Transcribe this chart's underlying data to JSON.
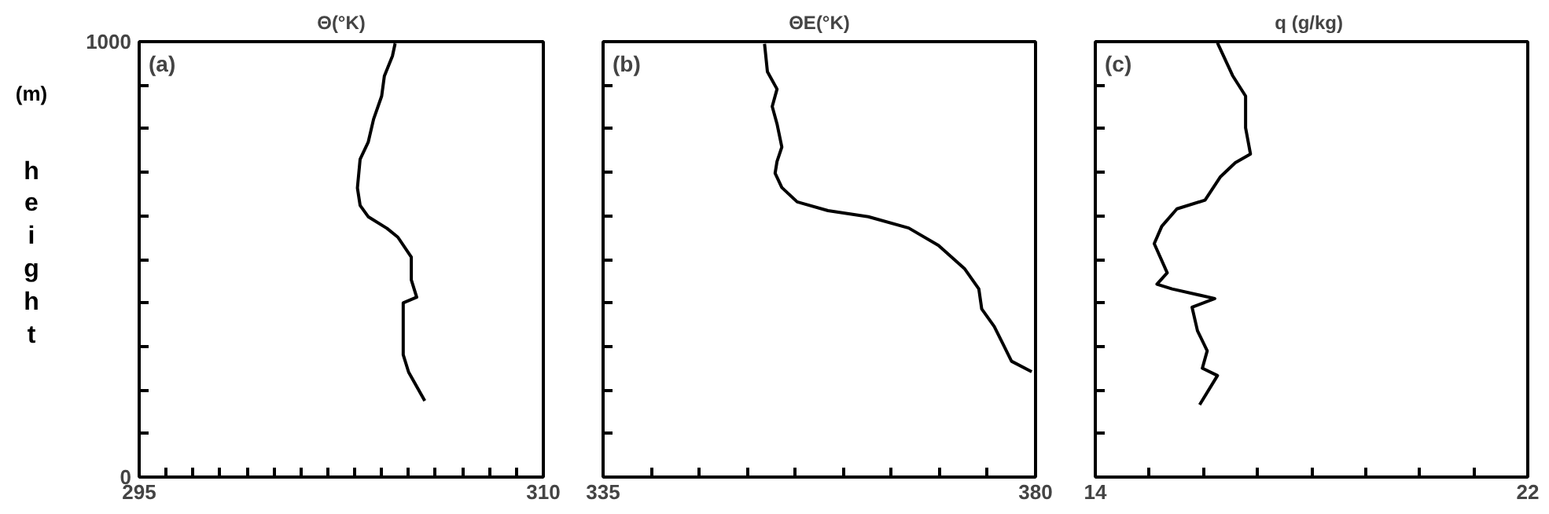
{
  "chart_data": [
    {
      "type": "line",
      "title": "Θ(°K)",
      "ylabel": "height",
      "annotations": [
        "(a)",
        "(m)"
      ],
      "xlim": [
        295,
        310
      ],
      "ylim": [
        0,
        1000
      ],
      "xticks": [
        295,
        {
          "value": 296,
          "label": null
        },
        {
          "value": 297,
          "label": null
        },
        {
          "value": 298,
          "label": null
        },
        {
          "value": 299,
          "label": null
        },
        {
          "value": 300,
          "label": null
        },
        {
          "value": 301,
          "label": null
        },
        {
          "value": 302,
          "label": null
        },
        {
          "value": 303,
          "label": null
        },
        {
          "value": 304,
          "label": null
        },
        {
          "value": 305,
          "label": null
        },
        {
          "value": 306,
          "label": null
        },
        {
          "value": 307,
          "label": null
        },
        {
          "value": 308,
          "label": null
        },
        {
          "value": 309,
          "label": null
        },
        310
      ],
      "yticks": [
        0,
        {
          "value": 100,
          "label": null
        },
        {
          "value": 200,
          "label": null
        },
        {
          "value": 300,
          "label": null
        },
        {
          "value": 400,
          "label": null
        },
        {
          "value": 500,
          "label": null
        },
        {
          "value": 600,
          "label": null
        },
        {
          "value": 700,
          "label": null
        },
        {
          "value": 800,
          "label": null
        },
        {
          "value": 900,
          "label": null
        },
        1000
      ],
      "series": [
        {
          "color": "#000000",
          "x": [
            305.6,
            305.0,
            304.8,
            304.8,
            304.8,
            305.3,
            305.1,
            305.1,
            304.6,
            304.2,
            303.5,
            303.2,
            303.1,
            303.2,
            303.5,
            303.7,
            304.0,
            304.1,
            304.4,
            304.5
          ],
          "values": [
            175,
            241,
            281,
            334,
            400,
            413,
            453,
            505,
            551,
            571,
            598,
            624,
            664,
            730,
            769,
            822,
            875,
            921,
            967,
            996
          ]
        }
      ]
    },
    {
      "type": "line",
      "title": "ΘE(°K)",
      "annotations": [
        "(b)"
      ],
      "xlim": [
        335,
        380
      ],
      "ylim": [
        0,
        1000
      ],
      "tick_labels": "x",
      "xticks": [
        335,
        {
          "value": 340,
          "label": null
        },
        {
          "value": 345,
          "label": null
        },
        {
          "value": 350,
          "label": null
        },
        {
          "value": 355,
          "label": null
        },
        {
          "value": 360,
          "label": null
        },
        {
          "value": 365,
          "label": null
        },
        {
          "value": 370,
          "label": null
        },
        {
          "value": 375,
          "label": null
        },
        380
      ],
      "yticks": [
        {
          "value": 100,
          "label": null
        },
        {
          "value": 200,
          "label": null
        },
        {
          "value": 300,
          "label": null
        },
        {
          "value": 400,
          "label": null
        },
        {
          "value": 500,
          "label": null
        },
        {
          "value": 600,
          "label": null
        },
        {
          "value": 700,
          "label": null
        },
        {
          "value": 800,
          "label": null
        },
        {
          "value": 900,
          "label": null
        }
      ],
      "series": [
        {
          "color": "#000000",
          "x": [
            379.6,
            377.5,
            376.6,
            375.7,
            374.4,
            374.1,
            372.6,
            369.9,
            366.8,
            362.6,
            358.4,
            355.2,
            353.6,
            352.9,
            353.1,
            353.6,
            353.1,
            352.6,
            353.1,
            352.1,
            351.8
          ],
          "values": [
            242,
            266,
            306,
            346,
            386,
            432,
            479,
            532,
            572,
            598,
            612,
            632,
            665,
            698,
            725,
            758,
            811,
            851,
            891,
            931,
            995
          ]
        }
      ]
    },
    {
      "type": "line",
      "title": "q  (g/kg)",
      "annotations": [
        "(c)"
      ],
      "xlim": [
        14,
        22
      ],
      "ylim": [
        0,
        1000
      ],
      "tick_labels": "x",
      "xticks": [
        14,
        {
          "value": 15,
          "label": null
        },
        {
          "value": 16,
          "label": null
        },
        {
          "value": 17,
          "label": null
        },
        {
          "value": 18,
          "label": null
        },
        {
          "value": 19,
          "label": null
        },
        {
          "value": 20,
          "label": null
        },
        {
          "value": 21,
          "label": null
        },
        22
      ],
      "yticks": [
        {
          "value": 100,
          "label": null
        },
        {
          "value": 200,
          "label": null
        },
        {
          "value": 300,
          "label": null
        },
        {
          "value": 400,
          "label": null
        },
        {
          "value": 500,
          "label": null
        },
        {
          "value": 600,
          "label": null
        },
        {
          "value": 700,
          "label": null
        },
        {
          "value": 800,
          "label": null
        },
        {
          "value": 900,
          "label": null
        }
      ],
      "series": [
        {
          "color": "#000000",
          "x": [
            15.93,
            16.26,
            15.98,
            16.07,
            15.89,
            15.79,
            16.21,
            15.42,
            15.14,
            15.33,
            15.09,
            15.23,
            15.51,
            16.03,
            16.31,
            16.59,
            16.87,
            16.78,
            16.78,
            16.54,
            16.26
          ],
          "values": [
            166,
            233,
            250,
            290,
            336,
            390,
            410,
            432,
            443,
            469,
            536,
            576,
            616,
            636,
            689,
            722,
            742,
            802,
            875,
            922,
            997
          ]
        }
      ]
    }
  ]
}
